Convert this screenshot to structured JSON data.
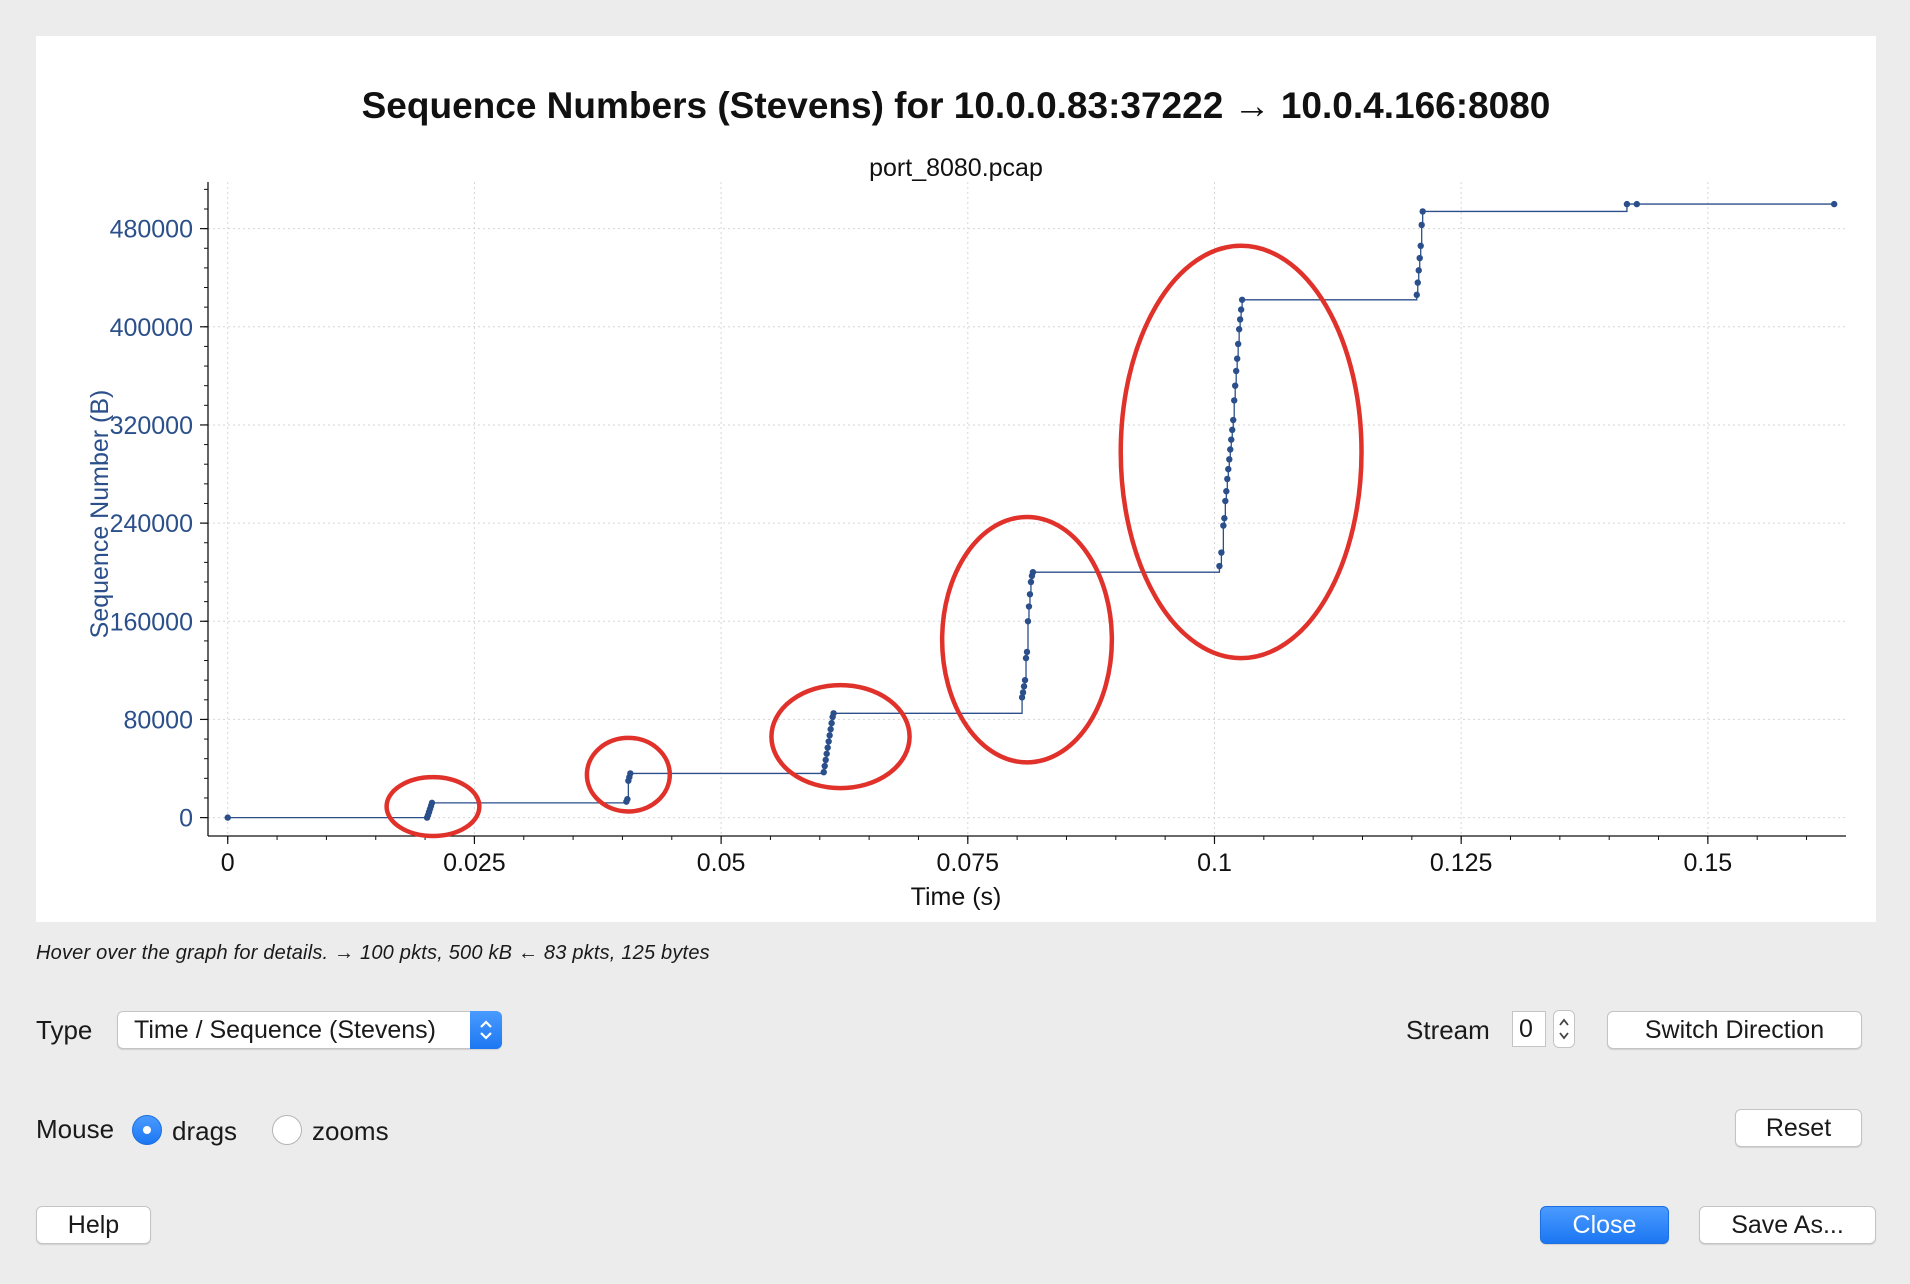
{
  "chart_data": {
    "type": "scatter",
    "title": "Sequence Numbers (Stevens) for 10.0.0.83:37222 → 10.0.4.166:8080",
    "subtitle": "port_8080.pcap",
    "xlabel": "Time (s)",
    "ylabel": "Sequence Number (B)",
    "xlim": [
      -0.002,
      0.164
    ],
    "ylim": [
      -15000,
      518000
    ],
    "x_ticks": [
      0,
      0.025,
      0.05,
      0.075,
      0.1,
      0.125,
      0.15
    ],
    "x_tick_labels": [
      "0",
      "0.025",
      "0.05",
      "0.075",
      "0.1",
      "0.125",
      "0.15"
    ],
    "y_ticks": [
      0,
      80000,
      160000,
      240000,
      320000,
      400000,
      480000
    ],
    "y_tick_labels": [
      "0",
      "80000",
      "160000",
      "240000",
      "320000",
      "400000",
      "480000"
    ],
    "grid": true,
    "series_color": "#2b4f8a",
    "annotation_color": "#e0322b",
    "series": [
      {
        "points": [
          [
            0,
            0
          ],
          [
            0.0202,
            0
          ],
          [
            0.0203,
            2000
          ],
          [
            0.0204,
            4500
          ],
          [
            0.0205,
            7000
          ],
          [
            0.0206,
            9500
          ],
          [
            0.0207,
            12000
          ],
          [
            0.0404,
            13000
          ],
          [
            0.0405,
            15000
          ],
          [
            0.0406,
            30000
          ],
          [
            0.0407,
            33000
          ],
          [
            0.0408,
            36000
          ],
          [
            0.0604,
            37000
          ],
          [
            0.0605,
            42000
          ],
          [
            0.0606,
            47000
          ],
          [
            0.0607,
            52000
          ],
          [
            0.0608,
            57000
          ],
          [
            0.0609,
            62000
          ],
          [
            0.061,
            67000
          ],
          [
            0.0611,
            72000
          ],
          [
            0.0612,
            77000
          ],
          [
            0.0613,
            82000
          ],
          [
            0.0614,
            85000
          ],
          [
            0.0805,
            98000
          ],
          [
            0.0806,
            102000
          ],
          [
            0.0807,
            107000
          ],
          [
            0.0808,
            112000
          ],
          [
            0.0809,
            130000
          ],
          [
            0.081,
            135000
          ],
          [
            0.0811,
            160000
          ],
          [
            0.0812,
            172000
          ],
          [
            0.0813,
            182000
          ],
          [
            0.0814,
            192000
          ],
          [
            0.0815,
            197000
          ],
          [
            0.0816,
            200000
          ],
          [
            0.1005,
            205000
          ],
          [
            0.1007,
            216000
          ],
          [
            0.1009,
            238000
          ],
          [
            0.101,
            244000
          ],
          [
            0.1011,
            258000
          ],
          [
            0.1012,
            266000
          ],
          [
            0.1013,
            276000
          ],
          [
            0.1014,
            284000
          ],
          [
            0.1015,
            292000
          ],
          [
            0.1016,
            300000
          ],
          [
            0.1017,
            308000
          ],
          [
            0.1018,
            316000
          ],
          [
            0.1019,
            324000
          ],
          [
            0.102,
            340000
          ],
          [
            0.1021,
            352000
          ],
          [
            0.1022,
            364000
          ],
          [
            0.1023,
            374000
          ],
          [
            0.1024,
            386000
          ],
          [
            0.1025,
            398000
          ],
          [
            0.1026,
            406000
          ],
          [
            0.1027,
            414000
          ],
          [
            0.1028,
            422000
          ],
          [
            0.1205,
            426000
          ],
          [
            0.1206,
            436000
          ],
          [
            0.1207,
            446000
          ],
          [
            0.1208,
            456000
          ],
          [
            0.1209,
            466000
          ],
          [
            0.121,
            483000
          ],
          [
            0.1211,
            494000
          ],
          [
            0.1418,
            500000
          ],
          [
            0.1428,
            500000
          ],
          [
            0.1628,
            500000
          ]
        ]
      }
    ],
    "annotations": [
      {
        "shape": "ellipse",
        "cx": 0.0208,
        "cy": 9000,
        "rx": 0.0047,
        "ry": 24000
      },
      {
        "shape": "ellipse",
        "cx": 0.0406,
        "cy": 35000,
        "rx": 0.0042,
        "ry": 30000
      },
      {
        "shape": "ellipse",
        "cx": 0.0621,
        "cy": 66000,
        "rx": 0.007,
        "ry": 42000
      },
      {
        "shape": "ellipse",
        "cx": 0.081,
        "cy": 145000,
        "rx": 0.0086,
        "ry": 100000
      },
      {
        "shape": "ellipse",
        "cx": 0.1027,
        "cy": 298000,
        "rx": 0.0122,
        "ry": 168000
      }
    ]
  },
  "hint_text": "Hover over the graph for details. → 100 pkts, 500 kB ← 83 pkts, 125 bytes",
  "controls": {
    "type_label": "Type",
    "type_value": "Time / Sequence (Stevens)",
    "stream_label": "Stream",
    "stream_value": "0",
    "switch_direction": "Switch Direction",
    "mouse_label": "Mouse",
    "mouse_options": [
      "drags",
      "zooms"
    ],
    "mouse_selected": "drags",
    "reset": "Reset",
    "help": "Help",
    "close": "Close",
    "save_as": "Save As..."
  },
  "colors": {
    "accent": "#1c77f2",
    "axis_text": "#2b4f8a"
  }
}
